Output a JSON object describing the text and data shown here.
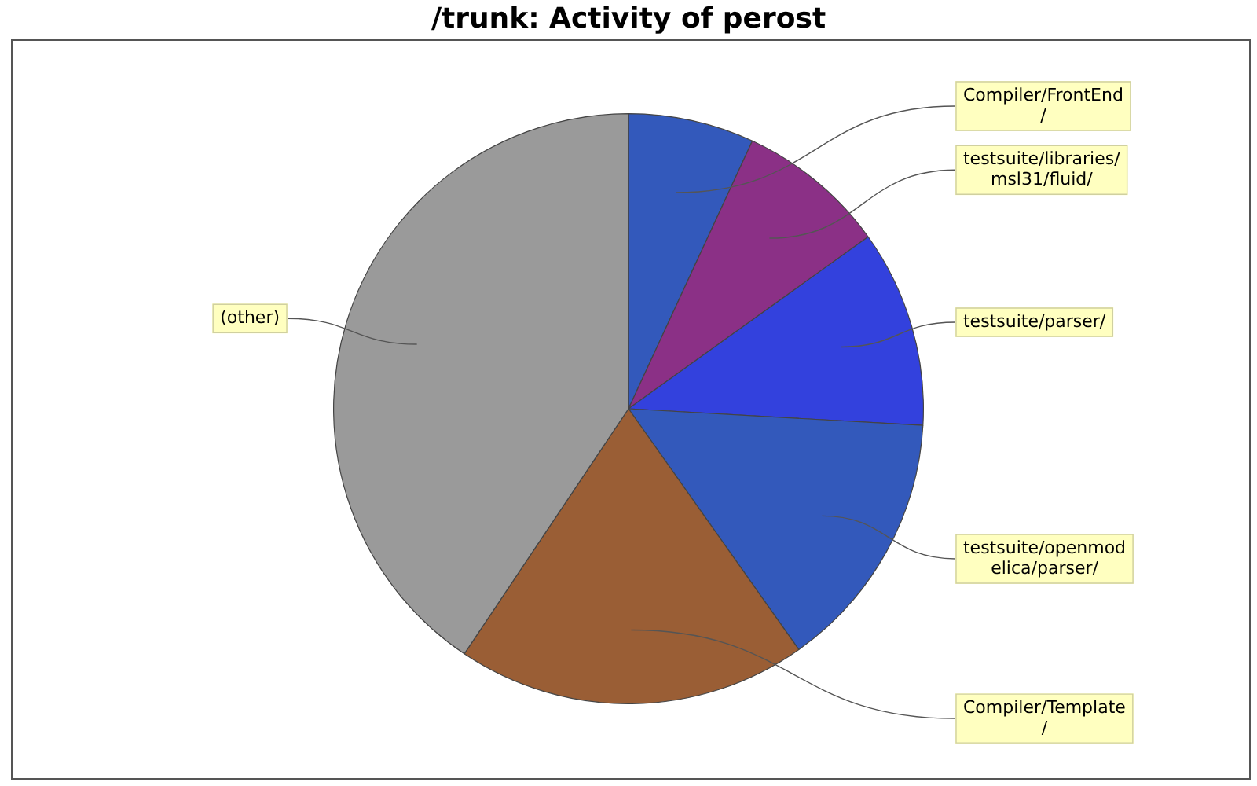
{
  "chart_data": {
    "type": "pie",
    "title": "/trunk: Activity of perost",
    "categories": [
      "Compiler/FrontEnd/",
      "testsuite/libraries/msl31/fluid/",
      "testsuite/parser/",
      "testsuite/openmodelica/parser/",
      "Compiler/Template/",
      "(other)"
    ],
    "values": [
      6.9,
      8.2,
      10.8,
      14.3,
      19.2,
      40.6
    ],
    "colors": [
      "#3359bb",
      "#8b3086",
      "#3341dd",
      "#3359bb",
      "#9a5e35",
      "#9a9a9a"
    ]
  }
}
